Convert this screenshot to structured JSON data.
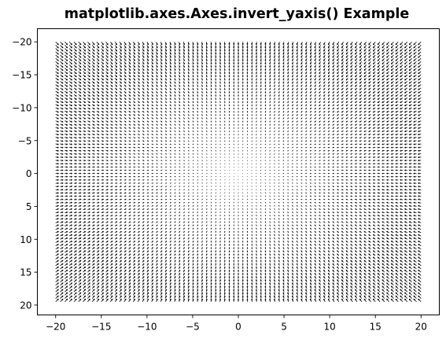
{
  "chart_data": {
    "type": "quiver",
    "title": "matplotlib.axes.Axes.invert_yaxis() Example",
    "xlabel": "",
    "ylabel": "",
    "xlim": [
      -22,
      22
    ],
    "ylim": [
      -22,
      21.5
    ],
    "y_inverted": true,
    "grid": false,
    "x_ticks": [
      -20,
      -15,
      -10,
      -5,
      0,
      5,
      10,
      15,
      20
    ],
    "x_tick_labels": [
      "−20",
      "−15",
      "−10",
      "−5",
      "0",
      "5",
      "10",
      "15",
      "20"
    ],
    "y_ticks": [
      -20,
      -15,
      -10,
      -5,
      0,
      5,
      10,
      15,
      20
    ],
    "y_tick_labels": [
      "−20",
      "−15",
      "−10",
      "−5",
      "0",
      "5",
      "10",
      "15",
      "20"
    ],
    "field": {
      "x_start": -20,
      "x_stop": 20,
      "y_start": -20,
      "y_stop": 19.5,
      "step": 0.5,
      "u": "-x",
      "v": "-y"
    },
    "arrow_color": "#000000"
  }
}
